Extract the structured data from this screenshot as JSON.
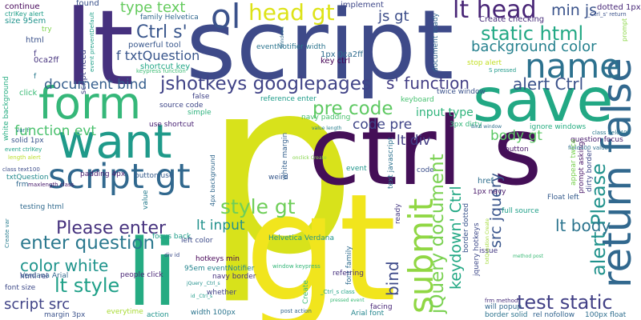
{
  "words": [
    {
      "text": "p",
      "color": "#d8e21b"
    },
    {
      "text": "script",
      "color": "#3e4a89"
    },
    {
      "text": "gt",
      "color": "#f1e51d"
    },
    {
      "text": "lt",
      "color": "#46317e"
    },
    {
      "text": "ctrl s",
      "color": "#440f57"
    },
    {
      "text": "save",
      "color": "#22a884"
    },
    {
      "text": "want",
      "color": "#1f9a8a"
    },
    {
      "text": "form",
      "color": "#35b779"
    },
    {
      "text": "li",
      "color": "#25ab82"
    },
    {
      "text": "return false",
      "color": "#31688e"
    },
    {
      "text": "name",
      "color": "#2c718e"
    },
    {
      "text": "ol",
      "color": "#3b528b"
    },
    {
      "text": "script gt",
      "color": "#31688e"
    },
    {
      "text": "submit",
      "color": "#90d743"
    },
    {
      "text": "head gt",
      "color": "#dde318"
    },
    {
      "text": "lt head",
      "color": "#482576"
    },
    {
      "text": "Ctrl s'",
      "color": "#39568c"
    },
    {
      "text": "static html",
      "color": "#22a884"
    },
    {
      "text": "background color",
      "color": "#26818e"
    },
    {
      "text": "jshotkeys googlepages",
      "color": "#404387"
    },
    {
      "text": "s' function",
      "color": "#433e85"
    },
    {
      "text": "document bind",
      "color": "#355e8d"
    },
    {
      "text": "alert Ctrl",
      "color": "#3b528b"
    },
    {
      "text": "alert Please",
      "color": "#20928c"
    },
    {
      "text": "pre code",
      "color": "#5ec962"
    },
    {
      "text": "Please enter",
      "color": "#46327e"
    },
    {
      "text": "enter question",
      "color": "#2a788e"
    },
    {
      "text": "style gt",
      "color": "#6ece58"
    },
    {
      "text": "jQuery document",
      "color": "#7ad151"
    },
    {
      "text": "test static",
      "color": "#424086"
    },
    {
      "text": "lt style",
      "color": "#1fa088"
    },
    {
      "text": "color white",
      "color": "#1f948c"
    },
    {
      "text": "script src",
      "color": "#414487"
    },
    {
      "text": "keydown' Ctrl",
      "color": "#22a884"
    },
    {
      "text": "src jquery",
      "color": "#39558c"
    },
    {
      "text": "bind",
      "color": "#3e4a89"
    },
    {
      "text": "type text",
      "color": "#65cb5e"
    },
    {
      "text": "js gt",
      "color": "#3d4e8a"
    },
    {
      "text": "min js",
      "color": "#3a538b"
    },
    {
      "text": "lt input",
      "color": "#21918c"
    },
    {
      "text": "lt body",
      "color": "#2b748e"
    },
    {
      "text": "body gt",
      "color": "#5ac864"
    },
    {
      "text": "function evt",
      "color": "#4ac16d"
    },
    {
      "text": "lt div",
      "color": "#433d84"
    },
    {
      "text": "code pre",
      "color": "#404588"
    },
    {
      "text": "input type",
      "color": "#2fb47c"
    },
    {
      "text": "f txtQuestion",
      "color": "#39568c"
    },
    {
      "text": "found",
      "color": "#3b528b"
    },
    {
      "text": "continue",
      "color": "#450559"
    },
    {
      "text": "ctrlKey alert",
      "color": "#1f9e89"
    },
    {
      "text": "size 95em",
      "color": "#20938c"
    },
    {
      "text": "try",
      "color": "#7fd34e"
    },
    {
      "text": "html",
      "color": "#3b528b"
    },
    {
      "text": "f",
      "color": "#453882"
    },
    {
      "text": "0ca2ff",
      "color": "#46337e"
    },
    {
      "text": "f",
      "color": "#297a8e"
    },
    {
      "text": "click",
      "color": "#3aba76"
    },
    {
      "text": "white background",
      "color": "#26ad81"
    },
    {
      "text": "script need",
      "color": "#404588"
    },
    {
      "text": "event preventDefault",
      "color": "#1fa088"
    },
    {
      "text": "family Helvetica",
      "color": "#31678e"
    },
    {
      "text": "powerful tool",
      "color": "#38578c"
    },
    {
      "text": "shortcut key",
      "color": "#21a685"
    },
    {
      "text": "keypress function",
      "color": "#3dbc74"
    },
    {
      "text": "implement",
      "color": "#3f4889"
    },
    {
      "text": "eventNotifier width",
      "color": "#2b748e"
    },
    {
      "text": "1px 0ca2ff",
      "color": "#2f6c8e"
    },
    {
      "text": "key ctrl",
      "color": "#440154"
    },
    {
      "text": "document ready",
      "color": "#32658e"
    },
    {
      "text": "Create checking",
      "color": "#472c7a"
    },
    {
      "text": "dotted 1px",
      "color": "#482878"
    },
    {
      "text": "_Ctrl_s' return",
      "color": "#3b528b"
    },
    {
      "text": "prompt",
      "color": "#8bd646"
    },
    {
      "text": "stop alert",
      "color": "#c2df23"
    },
    {
      "text": "S pressed",
      "color": "#1f9a8a"
    },
    {
      "text": "reference enter",
      "color": "#1e9c89"
    },
    {
      "text": "keyboard",
      "color": "#46c06f"
    },
    {
      "text": "twice window",
      "color": "#3b528b"
    },
    {
      "text": "Windows",
      "color": "#2f6b8e"
    },
    {
      "text": "false",
      "color": "#404387"
    },
    {
      "text": "simple",
      "color": "#2db27d"
    },
    {
      "text": "source code",
      "color": "#3f4788"
    },
    {
      "text": "use shortcut",
      "color": "#482173"
    },
    {
      "text": "var f",
      "color": "#2a788e"
    },
    {
      "text": "solid 1px",
      "color": "#3a548c"
    },
    {
      "text": "event ctrlKey",
      "color": "#1fa187"
    },
    {
      "text": "length alert",
      "color": "#bade28"
    },
    {
      "text": "class text100",
      "color": "#3d4d8a"
    },
    {
      "text": "txtQuestion",
      "color": "#238a8d"
    },
    {
      "text": "frm",
      "color": "#31688e"
    },
    {
      "text": "maxlength class",
      "color": "#481a6c"
    },
    {
      "text": "padding 4px",
      "color": "#481c6e"
    },
    {
      "text": "button use",
      "color": "#365c8d"
    },
    {
      "text": "testing html",
      "color": "#306a8e"
    },
    {
      "text": "focus back",
      "color": "#1f9e89"
    },
    {
      "text": "value",
      "color": "#287d8e"
    },
    {
      "text": "4px background",
      "color": "#31688e"
    },
    {
      "text": "weird",
      "color": "#38598c"
    },
    {
      "text": "white margin",
      "color": "#34608d"
    },
    {
      "text": "navy padding",
      "color": "#4ac16d"
    },
    {
      "text": "text javascript",
      "color": "#2c718e"
    },
    {
      "text": "onclick Create",
      "color": "#84d44b"
    },
    {
      "text": "Helvetica Verdana",
      "color": "#1f948c"
    },
    {
      "text": "event",
      "color": "#1f968b"
    },
    {
      "text": "ready",
      "color": "#453882"
    },
    {
      "text": "code",
      "color": "#3c4f8a"
    },
    {
      "text": "3px dirty",
      "color": "#34b679"
    },
    {
      "text": "Bind window",
      "color": "#2d708e"
    },
    {
      "text": "value length",
      "color": "#277e8e"
    },
    {
      "text": "ignore windows",
      "color": "#26ad81"
    },
    {
      "text": "question focus",
      "color": "#481b6d"
    },
    {
      "text": "class field400",
      "color": "#2a778e"
    },
    {
      "text": "button",
      "color": "#481467"
    },
    {
      "text": "field400 value",
      "color": "#2e6f8e"
    },
    {
      "text": "href",
      "color": "#2e6e8e"
    },
    {
      "text": "Float left",
      "color": "#365c8d"
    },
    {
      "text": "full source",
      "color": "#1f9f88"
    },
    {
      "text": "appear twice",
      "color": "#7ad151"
    },
    {
      "text": "prompt asking",
      "color": "#481668"
    },
    {
      "text": "dirty border",
      "color": "#3f4889"
    },
    {
      "text": "border dotted",
      "color": "#3a548c"
    },
    {
      "text": "1px navy",
      "color": "#481769"
    },
    {
      "text": "jquery hotkeys",
      "color": "#3e4989"
    },
    {
      "text": "issue",
      "color": "#443983"
    },
    {
      "text": "method post",
      "color": "#3aba76"
    },
    {
      "text": "txtQuestion Create",
      "color": "#a2da37"
    },
    {
      "text": "95em eventNotifier",
      "color": "#25858e"
    },
    {
      "text": "hotkeys min",
      "color": "#440154"
    },
    {
      "text": "div id",
      "color": "#3d4d8a"
    },
    {
      "text": "left color",
      "color": "#3e4c8a"
    },
    {
      "text": "Verdana Arial",
      "color": "#31688e"
    },
    {
      "text": "people click",
      "color": "#482475"
    },
    {
      "text": "html rel",
      "color": "#3f4889"
    },
    {
      "text": "Create var",
      "color": "#287c8e"
    },
    {
      "text": "font size",
      "color": "#3e4a89"
    },
    {
      "text": "navy border",
      "color": "#46307e"
    },
    {
      "text": "window keypress",
      "color": "#34b679"
    },
    {
      "text": "font family",
      "color": "#2f6c8e"
    },
    {
      "text": "referring",
      "color": "#46307e"
    },
    {
      "text": "whether",
      "color": "#404387"
    },
    {
      "text": "Create",
      "color": "#3dbc74"
    },
    {
      "text": "_Ctrl_s class",
      "color": "#20a386"
    },
    {
      "text": "pressed event",
      "color": "#3aba76"
    },
    {
      "text": "jQuery _Ctrl_s",
      "color": "#21918c"
    },
    {
      "text": "id _Ctrl_s",
      "color": "#1e9b8a"
    },
    {
      "text": "facing",
      "color": "#482677"
    },
    {
      "text": "Arial font",
      "color": "#24868e"
    },
    {
      "text": "frm method",
      "color": "#472d7b"
    },
    {
      "text": "will popup",
      "color": "#31678e"
    },
    {
      "text": "border solid",
      "color": "#2c738e"
    },
    {
      "text": "rel nofollow",
      "color": "#32648e"
    },
    {
      "text": "100px float",
      "color": "#2e6e8e"
    },
    {
      "text": "margin 3px",
      "color": "#3b528b"
    },
    {
      "text": "everytime",
      "color": "#a8db34"
    },
    {
      "text": "action",
      "color": "#1f948c"
    },
    {
      "text": "width 100px",
      "color": "#2b758e"
    },
    {
      "text": "post action",
      "color": "#32658e"
    }
  ]
}
